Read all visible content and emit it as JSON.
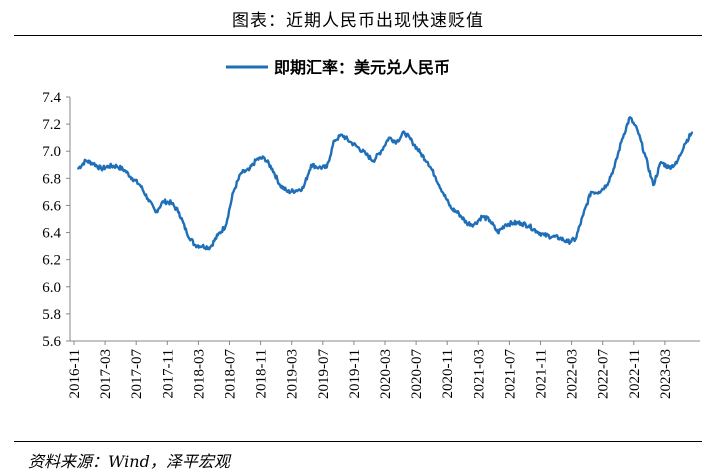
{
  "title": "图表：近期人民币出现快速贬值",
  "source": "资料来源：Wind，泽平宏观",
  "chart_data": {
    "type": "line",
    "title": "",
    "xlabel": "",
    "ylabel": "",
    "ylim": [
      5.6,
      7.4
    ],
    "yticks": [
      "5.6",
      "5.8",
      "6.0",
      "6.2",
      "6.4",
      "6.6",
      "6.8",
      "7.0",
      "7.2",
      "7.4"
    ],
    "xticks": [
      "2016-11",
      "2017-03",
      "2017-07",
      "2017-11",
      "2018-03",
      "2018-07",
      "2018-11",
      "2019-03",
      "2019-07",
      "2019-11",
      "2020-03",
      "2020-07",
      "2020-11",
      "2021-03",
      "2021-07",
      "2021-11",
      "2022-03",
      "2022-07",
      "2022-11",
      "2023-03"
    ],
    "legend_position": "top-center",
    "grid": false,
    "color": "#1f6fb8",
    "series": [
      {
        "name": "即期汇率：美元兑人民币",
        "x_start": "2016-11",
        "x_end": "2023-06",
        "points": [
          [
            "2016-11",
            6.87
          ],
          [
            "2016-12",
            6.93
          ],
          [
            "2017-01",
            6.91
          ],
          [
            "2017-02",
            6.87
          ],
          [
            "2017-03",
            6.89
          ],
          [
            "2017-04",
            6.89
          ],
          [
            "2017-05",
            6.86
          ],
          [
            "2017-06",
            6.8
          ],
          [
            "2017-07",
            6.75
          ],
          [
            "2017-08",
            6.65
          ],
          [
            "2017-09",
            6.55
          ],
          [
            "2017-10",
            6.63
          ],
          [
            "2017-11",
            6.62
          ],
          [
            "2017-12",
            6.55
          ],
          [
            "2018-01",
            6.4
          ],
          [
            "2018-02",
            6.31
          ],
          [
            "2018-03",
            6.3
          ],
          [
            "2018-04",
            6.29
          ],
          [
            "2018-05",
            6.38
          ],
          [
            "2018-06",
            6.45
          ],
          [
            "2018-07",
            6.7
          ],
          [
            "2018-08",
            6.84
          ],
          [
            "2018-09",
            6.86
          ],
          [
            "2018-10",
            6.94
          ],
          [
            "2018-11",
            6.95
          ],
          [
            "2018-12",
            6.87
          ],
          [
            "2019-01",
            6.75
          ],
          [
            "2019-02",
            6.7
          ],
          [
            "2019-03",
            6.71
          ],
          [
            "2019-04",
            6.73
          ],
          [
            "2019-05",
            6.9
          ],
          [
            "2019-06",
            6.88
          ],
          [
            "2019-07",
            6.88
          ],
          [
            "2019-08",
            7.08
          ],
          [
            "2019-09",
            7.12
          ],
          [
            "2019-10",
            7.07
          ],
          [
            "2019-11",
            7.03
          ],
          [
            "2019-12",
            6.98
          ],
          [
            "2020-01",
            6.93
          ],
          [
            "2020-02",
            7.0
          ],
          [
            "2020-03",
            7.1
          ],
          [
            "2020-04",
            7.07
          ],
          [
            "2020-05",
            7.14
          ],
          [
            "2020-06",
            7.07
          ],
          [
            "2020-07",
            6.99
          ],
          [
            "2020-08",
            6.92
          ],
          [
            "2020-09",
            6.81
          ],
          [
            "2020-10",
            6.69
          ],
          [
            "2020-11",
            6.58
          ],
          [
            "2020-12",
            6.54
          ],
          [
            "2021-01",
            6.47
          ],
          [
            "2021-02",
            6.46
          ],
          [
            "2021-03",
            6.52
          ],
          [
            "2021-04",
            6.49
          ],
          [
            "2021-05",
            6.4
          ],
          [
            "2021-06",
            6.46
          ],
          [
            "2021-07",
            6.47
          ],
          [
            "2021-08",
            6.47
          ],
          [
            "2021-09",
            6.45
          ],
          [
            "2021-10",
            6.41
          ],
          [
            "2021-11",
            6.38
          ],
          [
            "2021-12",
            6.37
          ],
          [
            "2022-01",
            6.36
          ],
          [
            "2022-02",
            6.33
          ],
          [
            "2022-03",
            6.35
          ],
          [
            "2022-04",
            6.53
          ],
          [
            "2022-05",
            6.7
          ],
          [
            "2022-06",
            6.7
          ],
          [
            "2022-07",
            6.75
          ],
          [
            "2022-08",
            6.88
          ],
          [
            "2022-09",
            7.09
          ],
          [
            "2022-10",
            7.25
          ],
          [
            "2022-11",
            7.15
          ],
          [
            "2022-12",
            6.96
          ],
          [
            "2023-01",
            6.75
          ],
          [
            "2023-02",
            6.92
          ],
          [
            "2023-03",
            6.88
          ],
          [
            "2023-04",
            6.91
          ],
          [
            "2023-05",
            7.05
          ],
          [
            "2023-06",
            7.14
          ]
        ]
      }
    ]
  }
}
